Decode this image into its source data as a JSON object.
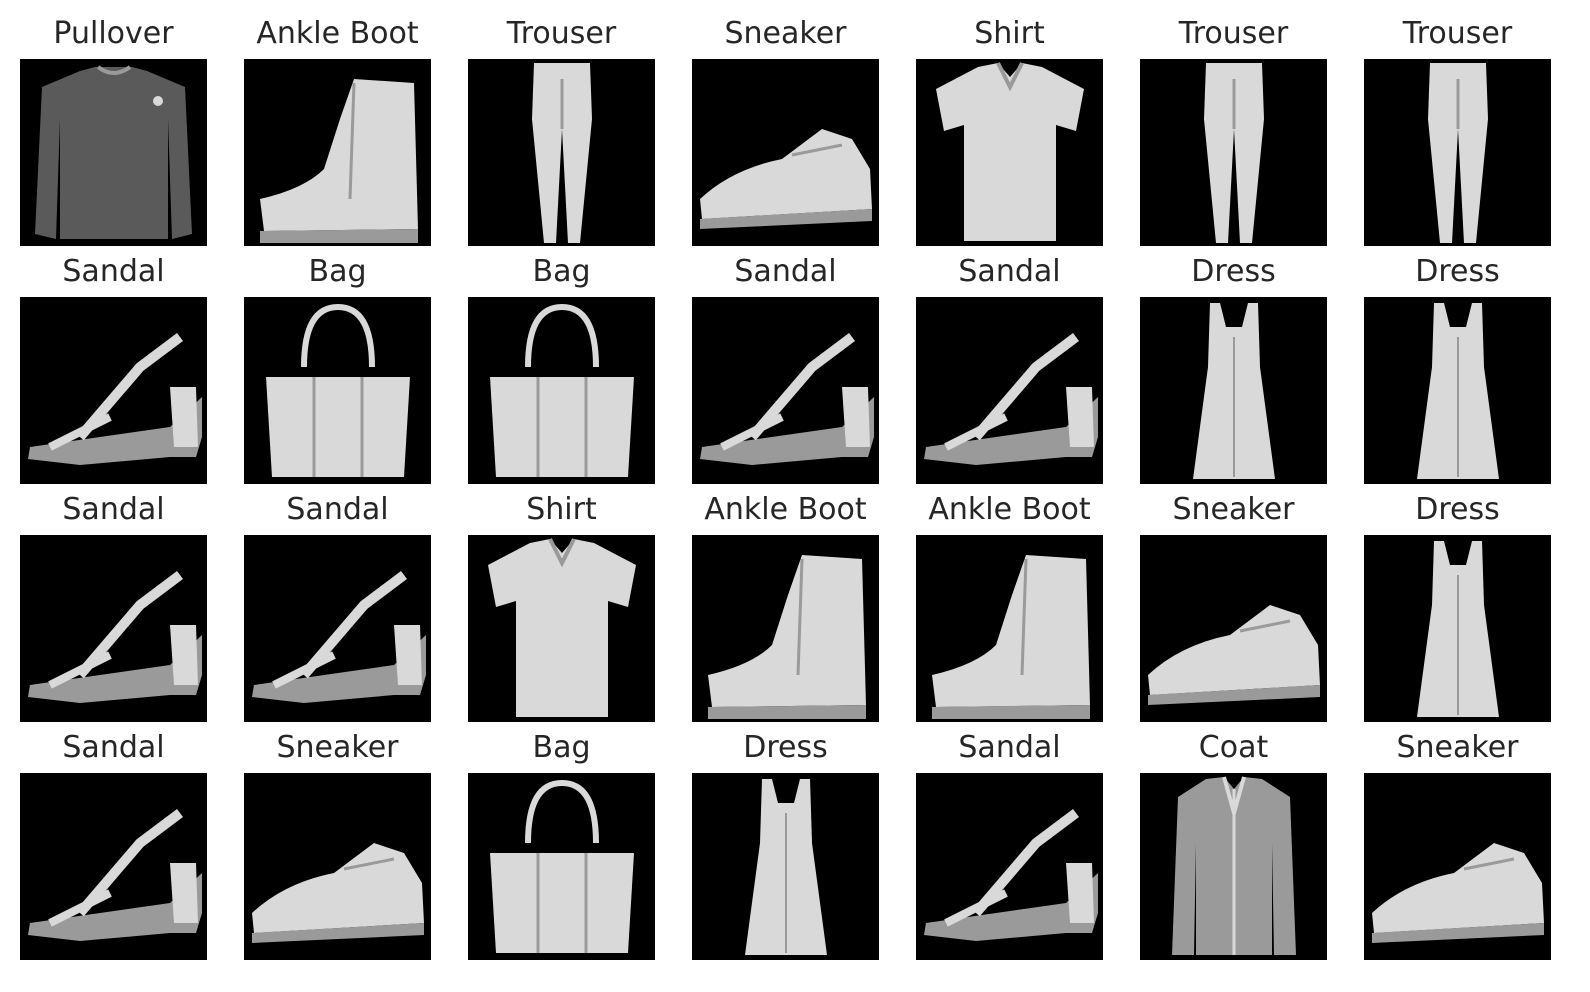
{
  "grid": {
    "rows": 4,
    "columns": 7,
    "items": [
      {
        "label": "Pullover",
        "icon": "pullover-icon"
      },
      {
        "label": "Ankle Boot",
        "icon": "ankle-boot-icon"
      },
      {
        "label": "Trouser",
        "icon": "trouser-icon"
      },
      {
        "label": "Sneaker",
        "icon": "sneaker-icon"
      },
      {
        "label": "Shirt",
        "icon": "shirt-icon"
      },
      {
        "label": "Trouser",
        "icon": "trouser-icon"
      },
      {
        "label": "Trouser",
        "icon": "trouser-icon"
      },
      {
        "label": "Sandal",
        "icon": "sandal-icon"
      },
      {
        "label": "Bag",
        "icon": "bag-icon"
      },
      {
        "label": "Bag",
        "icon": "bag-icon"
      },
      {
        "label": "Sandal",
        "icon": "sandal-icon"
      },
      {
        "label": "Sandal",
        "icon": "sandal-icon"
      },
      {
        "label": "Dress",
        "icon": "dress-icon"
      },
      {
        "label": "Dress",
        "icon": "dress-icon"
      },
      {
        "label": "Sandal",
        "icon": "sandal-icon"
      },
      {
        "label": "Sandal",
        "icon": "sandal-icon"
      },
      {
        "label": "Shirt",
        "icon": "shirt-icon"
      },
      {
        "label": "Ankle Boot",
        "icon": "ankle-boot-icon"
      },
      {
        "label": "Ankle Boot",
        "icon": "ankle-boot-icon"
      },
      {
        "label": "Sneaker",
        "icon": "sneaker-icon"
      },
      {
        "label": "Dress",
        "icon": "dress-icon"
      },
      {
        "label": "Sandal",
        "icon": "sandal-icon"
      },
      {
        "label": "Sneaker",
        "icon": "sneaker-icon"
      },
      {
        "label": "Bag",
        "icon": "bag-icon"
      },
      {
        "label": "Dress",
        "icon": "dress-icon"
      },
      {
        "label": "Sandal",
        "icon": "sandal-icon"
      },
      {
        "label": "Coat",
        "icon": "coat-icon"
      },
      {
        "label": "Sneaker",
        "icon": "sneaker-icon"
      }
    ]
  },
  "colors": {
    "background": "#ffffff",
    "tile_background": "#000000",
    "title_text": "#262626",
    "garment_light": "#d9d9d9",
    "garment_mid": "#9a9a9a",
    "garment_dark": "#5a5a5a"
  }
}
